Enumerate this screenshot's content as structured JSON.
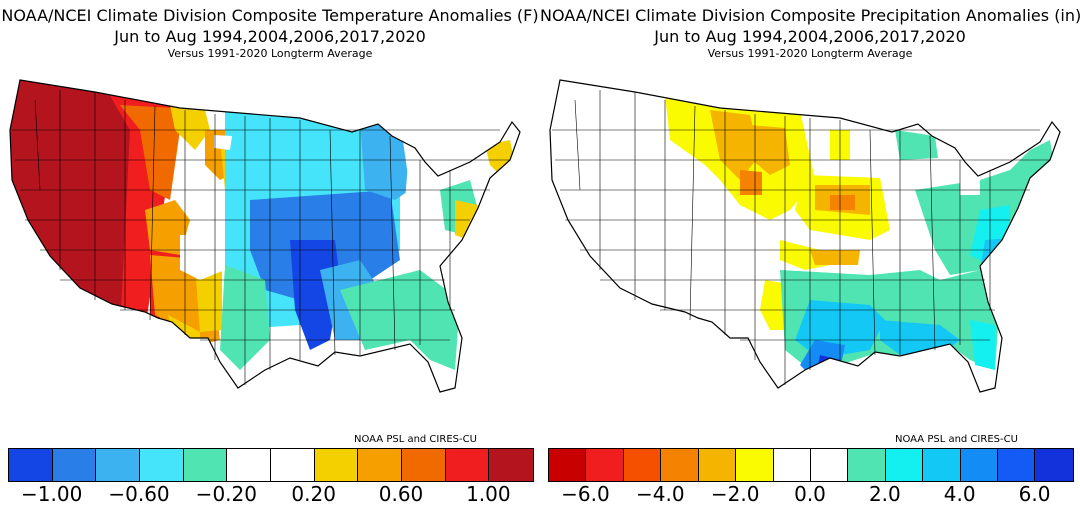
{
  "left": {
    "title_line1": "NOAA/NCEI Climate Division Composite Temperature Anomalies (F)",
    "title_line2": "Jun to Aug  1994,2004,2006,2017,2020",
    "title_line3": "Versus 1991-2020 Longterm Average",
    "credit": "NOAA PSL and CIRES-CU",
    "colorbar": [
      "#1446e6",
      "#2a7ee8",
      "#3cb2f0",
      "#46e4fa",
      "#50e4b2",
      "#ffffff",
      "#ffffff",
      "#f5d000",
      "#f5a000",
      "#f06a00",
      "#f01e1e",
      "#b4141e"
    ],
    "ticks": [
      "−1.00",
      "−0.60",
      "−0.20",
      "0.20",
      "0.60",
      "1.00"
    ]
  },
  "right": {
    "title_line1": "NOAA/NCEI Climate Division Composite Precipitation Anomalies (in)",
    "title_line2": "Jun to Aug  1994,2004,2006,2017,2020",
    "title_line3": "Versus 1991-2020 Longterm Average",
    "credit": "NOAA PSL and CIRES-CU",
    "colorbar": [
      "#c80000",
      "#f01e1e",
      "#f55000",
      "#f58200",
      "#f5b400",
      "#fafa00",
      "#ffffff",
      "#ffffff",
      "#50e4b2",
      "#14f0f0",
      "#14c8f5",
      "#148cf5",
      "#145af5",
      "#1432dc"
    ],
    "ticks": [
      "−6.0",
      "−4.0",
      "−2.0",
      "0.0",
      "2.0",
      "4.0",
      "6.0"
    ]
  }
}
